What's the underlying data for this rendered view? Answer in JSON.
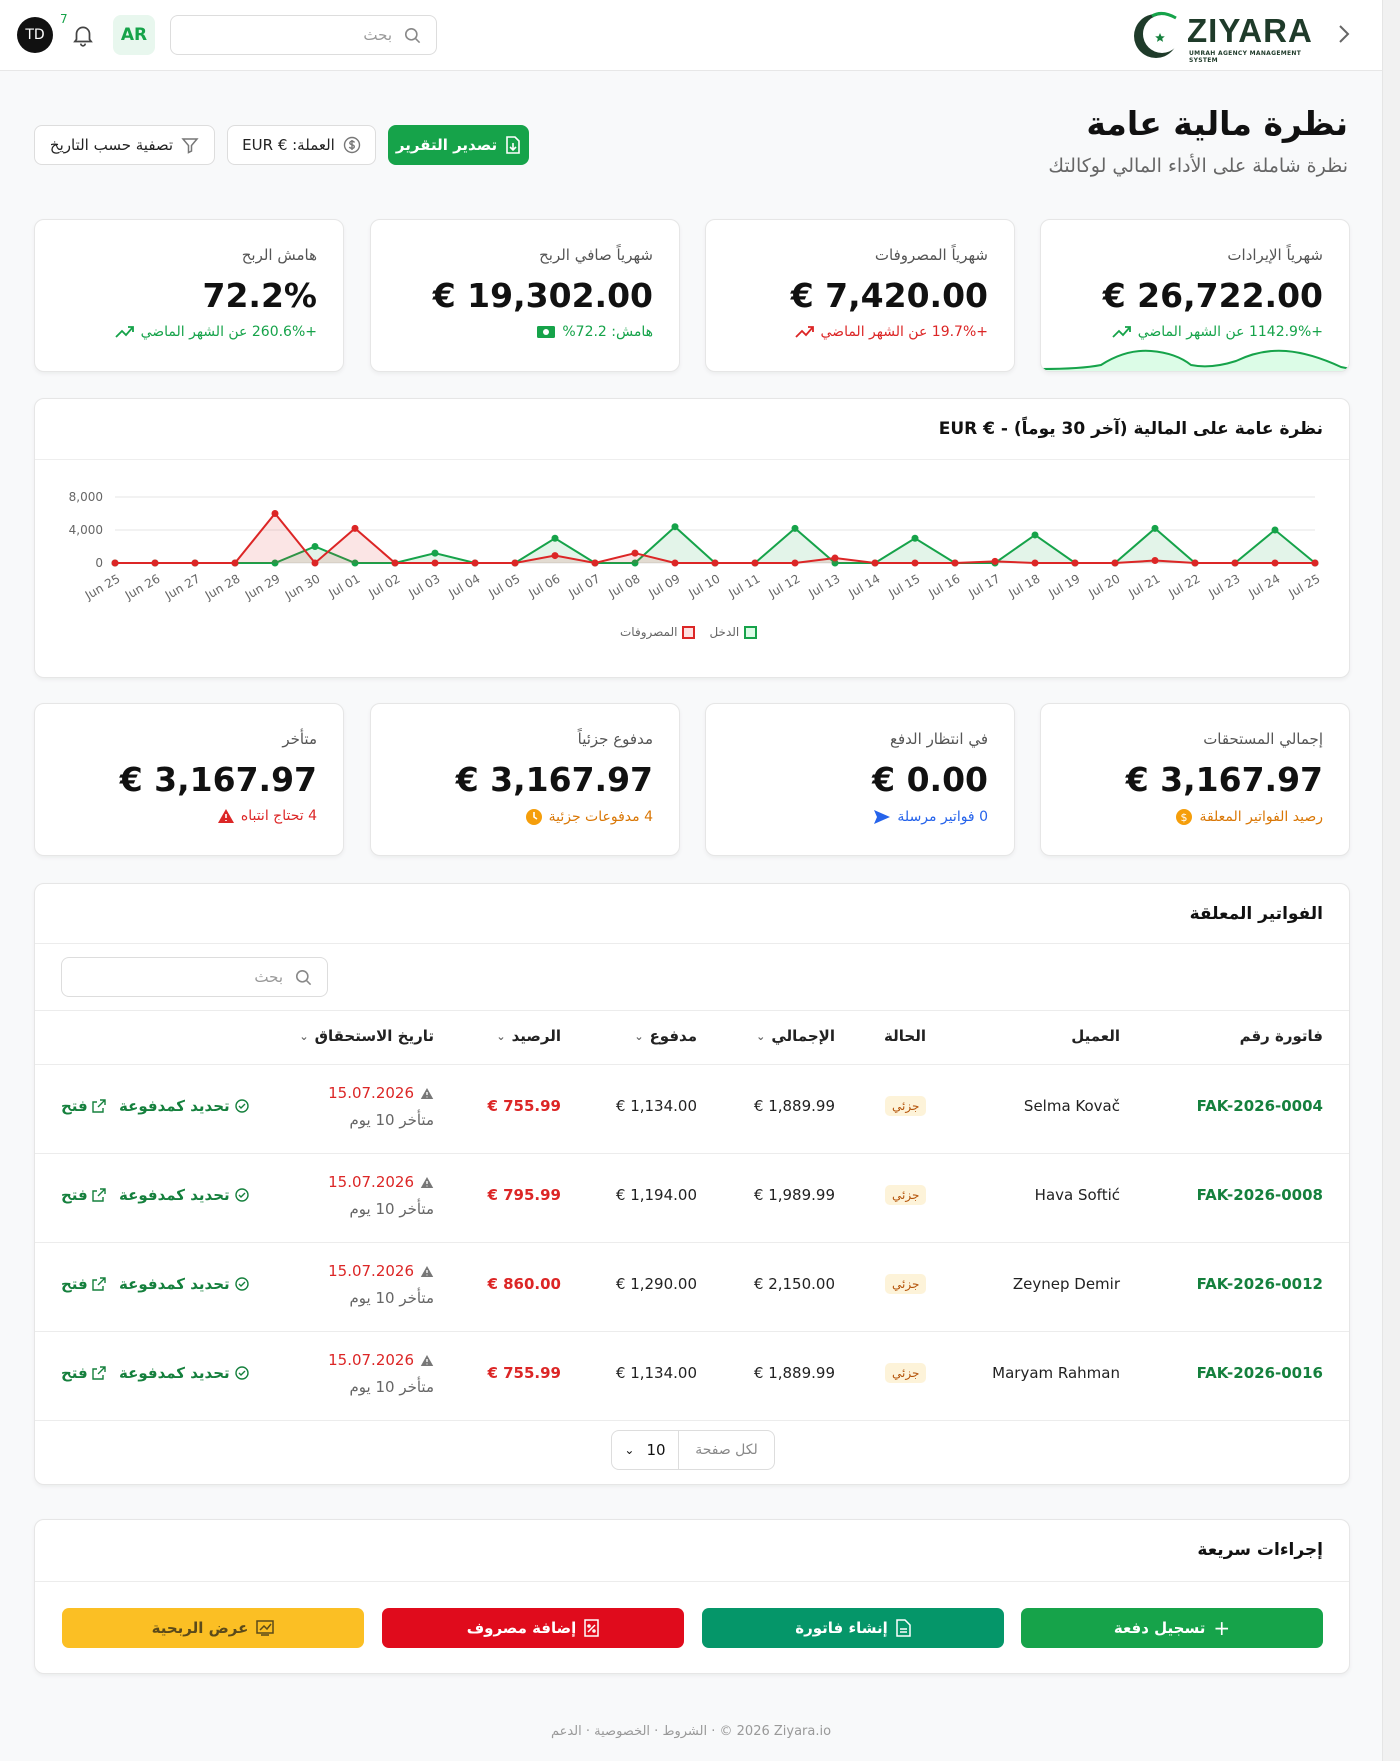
{
  "header": {
    "avatar_initials": "TD",
    "notification_count": "7",
    "language": "AR",
    "search_placeholder": "بحث",
    "logo_word": "ZIYARA",
    "logo_tagline": "UMRAH AGENCY MANAGEMENT SYSTEM"
  },
  "page": {
    "title": "نظرة مالية عامة",
    "subtitle": "نظرة شاملة على الأداء المالي لوكالتك",
    "export_label": "تصدير التقرير",
    "currency_label": "العملة: € EUR",
    "date_filter_label": "تصفية حسب التاريخ"
  },
  "stats": [
    {
      "label": "شهرياً الإيرادات",
      "value": "€ 26,722.00",
      "sub": "+1142.9% عن الشهر الماضي",
      "color": "#16a34a"
    },
    {
      "label": "شهرياً المصروفات",
      "value": "€ 7,420.00",
      "sub": "+19.7% عن الشهر الماضي",
      "color": "#dc2626"
    },
    {
      "label": "شهرياً صافي الربح",
      "value": "€ 19,302.00",
      "sub": "هامش: 72.2%",
      "color": "#16a34a"
    },
    {
      "label": "هامش الربح",
      "value": "72.2%",
      "sub": "+260.6% عن الشهر الماضي",
      "color": "#16a34a"
    }
  ],
  "chart_data": {
    "type": "area",
    "title": "نظرة عامة على المالية (آخر 30 يوماً) - € EUR",
    "categories": [
      "Jun 25",
      "Jun 26",
      "Jun 27",
      "Jun 28",
      "Jun 29",
      "Jun 30",
      "Jul 01",
      "Jul 02",
      "Jul 03",
      "Jul 04",
      "Jul 05",
      "Jul 06",
      "Jul 07",
      "Jul 08",
      "Jul 09",
      "Jul 10",
      "Jul 11",
      "Jul 12",
      "Jul 13",
      "Jul 14",
      "Jul 15",
      "Jul 16",
      "Jul 17",
      "Jul 18",
      "Jul 19",
      "Jul 20",
      "Jul 21",
      "Jul 22",
      "Jul 23",
      "Jul 24",
      "Jul 25"
    ],
    "series": [
      {
        "name": "الدخل",
        "color": "#16a34a",
        "values": [
          0,
          0,
          0,
          0,
          0,
          2000,
          0,
          0,
          1200,
          0,
          0,
          3000,
          0,
          0,
          4400,
          0,
          0,
          4200,
          0,
          0,
          3000,
          0,
          0,
          3400,
          0,
          0,
          4200,
          0,
          0,
          4000,
          0
        ]
      },
      {
        "name": "المصروفات",
        "color": "#dc2626",
        "values": [
          0,
          0,
          0,
          0,
          6000,
          0,
          4200,
          0,
          0,
          0,
          0,
          900,
          0,
          1200,
          0,
          0,
          0,
          0,
          600,
          0,
          0,
          0,
          200,
          0,
          0,
          0,
          300,
          0,
          0,
          0,
          0
        ]
      }
    ],
    "yticks": [
      "8,000",
      "4,000",
      "0"
    ],
    "ylim": [
      0,
      8000
    ],
    "legend": "bottom-center",
    "grid": true
  },
  "receivables": [
    {
      "label": "إجمالي المستحقات",
      "value": "€ 3,167.97",
      "sub": "رصيد الفواتير المعلقة",
      "color": "#d97706"
    },
    {
      "label": "في انتظار الدفع",
      "value": "€ 0.00",
      "sub": "0 فواتير مرسلة",
      "color": "#2563eb"
    },
    {
      "label": "مدفوع جزئياً",
      "value": "€ 3,167.97",
      "sub": "4 مدفوعات جزئية",
      "color": "#d97706"
    },
    {
      "label": "متأخر",
      "value": "€ 3,167.97",
      "sub": "4 تحتاج انتباه",
      "color": "#dc2626"
    }
  ],
  "invoices_table": {
    "title": "الفواتير المعلقة",
    "search_placeholder": "بحث",
    "headers": {
      "invoice": "فاتورة رقم",
      "client": "العميل",
      "status": "الحالة",
      "total": "الإجمالي",
      "paid": "مدفوع",
      "balance": "الرصيد",
      "due": "تاريخ الاستحقاق"
    },
    "rows": [
      {
        "invoice": "FAK-2026-0004",
        "client": "Selma Kovač",
        "status": "جزئي",
        "total": "€ 1,889.99",
        "paid": "€ 1,134.00",
        "balance": "€ 755.99",
        "due": "15.07.2026",
        "late": "متأخر 10 يوم"
      },
      {
        "invoice": "FAK-2026-0008",
        "client": "Hava Softić",
        "status": "جزئي",
        "total": "€ 1,989.99",
        "paid": "€ 1,194.00",
        "balance": "€ 795.99",
        "due": "15.07.2026",
        "late": "متأخر 10 يوم"
      },
      {
        "invoice": "FAK-2026-0012",
        "client": "Zeynep Demir",
        "status": "جزئي",
        "total": "€ 2,150.00",
        "paid": "€ 1,290.00",
        "balance": "€ 860.00",
        "due": "15.07.2026",
        "late": "متأخر 10 يوم"
      },
      {
        "invoice": "FAK-2026-0016",
        "client": "Maryam Rahman",
        "status": "جزئي",
        "total": "€ 1,889.99",
        "paid": "€ 1,134.00",
        "balance": "€ 755.99",
        "due": "15.07.2026",
        "late": "متأخر 10 يوم"
      }
    ],
    "action_mark_paid": "تحديد كمدفوعة",
    "action_open": "فتح",
    "per_page_label": "لكل صفحة",
    "per_page_value": "10"
  },
  "quick_actions": {
    "title": "إجراءات سريعة",
    "record_payment": "تسجيل دفعة",
    "create_invoice": "إنشاء فاتورة",
    "add_expense": "إضافة مصروف",
    "view_profitability": "عرض الربحية"
  },
  "footer": {
    "copyright": "© 2026 Ziyara.io",
    "terms": "الشروط",
    "privacy": "الخصوصية",
    "support": "الدعم"
  }
}
